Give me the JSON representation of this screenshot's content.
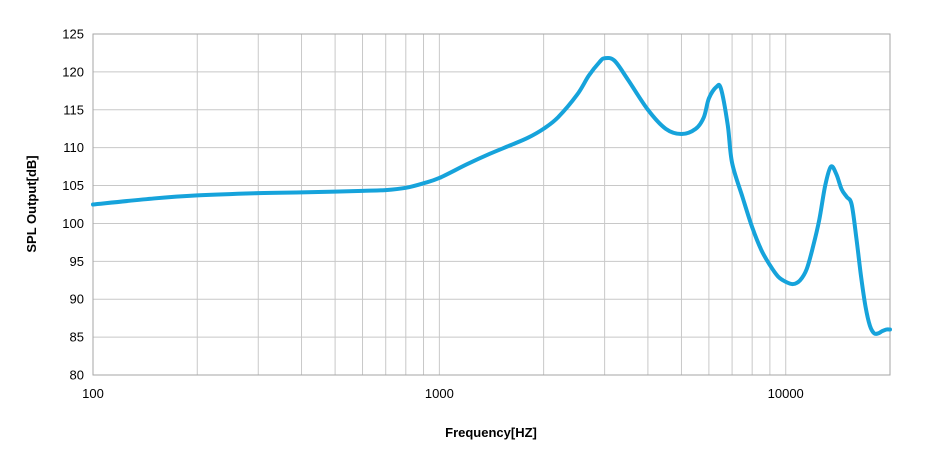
{
  "chart_data": {
    "type": "line",
    "x_scale": "log",
    "title": "",
    "xlabel": "Frequency[HZ]",
    "ylabel": "SPL Output[dB]",
    "xlim": [
      100,
      20000
    ],
    "ylim": [
      80,
      125
    ],
    "grid": true,
    "x_ticks": [
      100,
      1000,
      10000
    ],
    "x_tick_labels": [
      "100",
      "1000",
      "10000"
    ],
    "y_ticks": [
      80,
      85,
      90,
      95,
      100,
      105,
      110,
      115,
      120,
      125
    ],
    "y_tick_labels": [
      "80",
      "85",
      "90",
      "95",
      "100",
      "105",
      "110",
      "115",
      "120",
      "125"
    ],
    "series": [
      {
        "name": "SPL Output",
        "color": "#16a3db",
        "x": [
          100,
          150,
          200,
          300,
          400,
          500,
          600,
          700,
          800,
          900,
          1000,
          1200,
          1400,
          1600,
          1800,
          2000,
          2200,
          2500,
          2700,
          2900,
          3000,
          3200,
          3500,
          4000,
          4500,
          5000,
          5500,
          5800,
          6000,
          6300,
          6500,
          6800,
          7000,
          7500,
          8000,
          8500,
          9000,
          9500,
          10000,
          10500,
          11000,
          11500,
          12000,
          12500,
          13000,
          13500,
          14000,
          14500,
          15000,
          15500,
          16000,
          16500,
          17000,
          17500,
          18000,
          18500,
          19000,
          19500,
          20000
        ],
        "y": [
          102.5,
          103.3,
          103.7,
          104.0,
          104.1,
          104.2,
          104.3,
          104.4,
          104.7,
          105.3,
          106.0,
          107.8,
          109.2,
          110.3,
          111.3,
          112.5,
          114.0,
          117.0,
          119.5,
          121.3,
          121.8,
          121.5,
          119.0,
          115.0,
          112.5,
          111.8,
          112.5,
          114.0,
          116.5,
          118.0,
          117.8,
          113.0,
          108.0,
          103.5,
          99.5,
          96.5,
          94.5,
          93.0,
          92.3,
          92.0,
          92.5,
          94.0,
          97.0,
          100.5,
          105.0,
          107.5,
          106.5,
          104.5,
          103.5,
          102.5,
          98.0,
          93.0,
          89.0,
          86.5,
          85.5,
          85.5,
          85.8,
          86.0,
          86.0
        ]
      }
    ]
  }
}
